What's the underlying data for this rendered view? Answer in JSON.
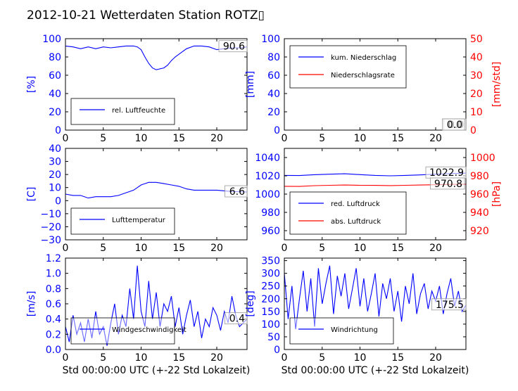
{
  "page": {
    "title": "2012-10-21 Wetterdaten Station ROTZ",
    "title_glyph": "▯"
  },
  "chart_data": [
    {
      "id": "humidity",
      "type": "line",
      "x_ticks": [
        "0",
        "5",
        "10",
        "15",
        "20"
      ],
      "xlim": [
        0,
        24
      ],
      "ylabel": "[%]",
      "ylim": [
        0,
        100
      ],
      "y_ticks": [
        "0",
        "20",
        "40",
        "60",
        "80",
        "100"
      ],
      "y_color": "#0000ff",
      "legend_loc": "lower-left",
      "annotation": "90.6",
      "series": [
        {
          "name": "rel. Luftfeuchte",
          "color": "#0000ff",
          "x": [
            0,
            1,
            2,
            3,
            4,
            5,
            6,
            7,
            8,
            9,
            9.5,
            10,
            10.5,
            11,
            11.5,
            12,
            12.5,
            13,
            13.5,
            14,
            14.5,
            15,
            15.5,
            16,
            17,
            18,
            19,
            20,
            21,
            22,
            23,
            24
          ],
          "y": [
            92,
            91,
            89,
            91,
            89,
            91,
            90,
            91,
            92,
            92,
            91,
            88,
            80,
            73,
            68,
            66,
            67,
            68,
            71,
            76,
            80,
            83,
            86,
            89,
            92,
            92,
            91,
            88,
            89,
            90,
            90,
            91
          ]
        }
      ]
    },
    {
      "id": "precip",
      "type": "line",
      "x_ticks": [
        "0",
        "5",
        "10",
        "15",
        "20"
      ],
      "xlim": [
        0,
        24
      ],
      "ylabel": "[mm]",
      "ylim": [
        0,
        100
      ],
      "y_ticks": [
        "0",
        "20",
        "40",
        "60",
        "80",
        "100"
      ],
      "y_color": "#0000ff",
      "y2label": "[mm/std]",
      "y2lim": [
        0,
        50
      ],
      "y2_ticks": [
        "0",
        "10",
        "20",
        "30",
        "40",
        "50"
      ],
      "y2_color": "#ff0000",
      "legend_loc": "upper-left",
      "annotation": "0.0",
      "annotation2": "0.0",
      "series": [
        {
          "name": "kum. Niederschlag",
          "color": "#0000ff",
          "axis": "left",
          "x": [
            0,
            24
          ],
          "y": [
            0,
            0
          ]
        },
        {
          "name": "Niederschlagsrate",
          "color": "#ff0000",
          "axis": "right",
          "x": [
            0,
            24
          ],
          "y": [
            0,
            0
          ]
        }
      ]
    },
    {
      "id": "temperature",
      "type": "line",
      "x_ticks": [
        "0",
        "5",
        "10",
        "15",
        "20"
      ],
      "xlim": [
        0,
        24
      ],
      "ylabel": "[C]",
      "ylim": [
        -30,
        40
      ],
      "y_ticks": [
        "−30",
        "−20",
        "−10",
        "0",
        "10",
        "20",
        "30",
        "40"
      ],
      "y_color": "#0000ff",
      "legend_loc": "lower-left",
      "annotation": "6.6",
      "series": [
        {
          "name": "Lufttemperatur",
          "color": "#0000ff",
          "x": [
            0,
            1,
            2,
            3,
            4,
            5,
            6,
            7,
            8,
            9,
            10,
            10.5,
            11,
            12,
            13,
            14,
            15,
            16,
            17,
            18,
            19,
            20,
            21,
            22,
            23,
            24
          ],
          "y": [
            5,
            4,
            4,
            2,
            3,
            3,
            3,
            4,
            6,
            8,
            12,
            13,
            14,
            14,
            13,
            12,
            11,
            9,
            8,
            8,
            8,
            8,
            7.5,
            7,
            6.8,
            6.6
          ]
        }
      ]
    },
    {
      "id": "pressure",
      "type": "line",
      "x_ticks": [
        "0",
        "5",
        "10",
        "15",
        "20"
      ],
      "xlim": [
        0,
        24
      ],
      "ylabel": "",
      "ylim": [
        950,
        1050
      ],
      "y_ticks": [
        "960",
        "980",
        "1000",
        "1020",
        "1040"
      ],
      "y_color": "#0000ff",
      "y2label": "[hPa]",
      "y2lim": [
        910,
        1010
      ],
      "y2_ticks": [
        "920",
        "940",
        "960",
        "980",
        "1000"
      ],
      "y2_color": "#ff0000",
      "legend_loc": "lower-left",
      "annotation": "1022.9",
      "annotation2": "970.8",
      "series": [
        {
          "name": "red. Luftdruck",
          "color": "#0000ff",
          "axis": "left",
          "x": [
            0,
            2,
            4,
            6,
            8,
            10,
            12,
            14,
            16,
            18,
            20,
            22,
            24
          ],
          "y": [
            1020.5,
            1020.3,
            1021.2,
            1021.8,
            1022.2,
            1021.3,
            1020.5,
            1020,
            1020.5,
            1021,
            1021.8,
            1022.5,
            1022.9
          ]
        },
        {
          "name": "abs. Luftdruck",
          "color": "#ff0000",
          "axis": "right",
          "x": [
            0,
            2,
            4,
            6,
            8,
            10,
            12,
            14,
            16,
            18,
            20,
            22,
            24
          ],
          "y": [
            968.5,
            968.4,
            969.2,
            969.6,
            969.9,
            969.6,
            969.5,
            969.3,
            969.6,
            969.9,
            970.2,
            970.6,
            970.8
          ]
        }
      ]
    },
    {
      "id": "windspeed",
      "type": "line",
      "x_ticks": [
        "0",
        "5",
        "10",
        "15",
        "20"
      ],
      "xlabel": "Std 00:00:00 UTC (+-22 Std Lokalzeit)",
      "xlim": [
        0,
        24
      ],
      "ylabel": "[m/s]",
      "ylim": [
        0,
        1.2
      ],
      "y_ticks": [
        "0.0",
        "0.2",
        "0.4",
        "0.6",
        "0.8",
        "1.0",
        "1.2"
      ],
      "y_color": "#0000ff",
      "legend_loc": "lower-left",
      "annotation": "0.4",
      "series": [
        {
          "name": "Windgeschwindigkeit",
          "color": "#0000ff",
          "x": [
            0,
            0.5,
            1,
            1.5,
            2,
            2.5,
            3,
            3.5,
            4,
            4.5,
            5,
            5.5,
            6,
            6.5,
            7,
            7.5,
            8,
            8.5,
            9,
            9.5,
            10,
            10.5,
            11,
            11.5,
            12,
            12.5,
            13,
            13.5,
            14,
            14.5,
            15,
            15.5,
            16,
            16.5,
            17,
            17.5,
            18,
            18.5,
            19,
            19.5,
            20,
            20.5,
            21,
            21.5,
            22,
            22.5,
            23,
            23.5,
            24
          ],
          "y": [
            0.3,
            0.1,
            0.45,
            0.2,
            0.35,
            0.1,
            0.4,
            0.15,
            0.5,
            0.2,
            0.3,
            0.05,
            0.35,
            0.6,
            0.2,
            0.45,
            0.3,
            0.8,
            0.4,
            1.1,
            0.5,
            0.3,
            0.9,
            0.4,
            0.75,
            0.3,
            0.6,
            0.5,
            0.7,
            0.3,
            0.55,
            0.2,
            0.45,
            0.65,
            0.3,
            0.5,
            0.15,
            0.4,
            0.3,
            0.55,
            0.45,
            0.25,
            0.5,
            0.35,
            0.7,
            0.45,
            0.3,
            0.35,
            0.4
          ]
        }
      ]
    },
    {
      "id": "winddir",
      "type": "line",
      "x_ticks": [
        "0",
        "5",
        "10",
        "15",
        "20"
      ],
      "xlabel": "Std 00:00:00 UTC (+-22 Std Lokalzeit)",
      "xlim": [
        0,
        24
      ],
      "ylabel": "[deg]",
      "ylim": [
        0,
        360
      ],
      "y_ticks": [
        "0",
        "50",
        "100",
        "150",
        "200",
        "250",
        "300",
        "350"
      ],
      "y_color": "#0000ff",
      "legend_loc": "lower-left",
      "annotation": "175.5",
      "series": [
        {
          "name": "Windrichtung",
          "color": "#0000ff",
          "x": [
            0,
            0.5,
            1,
            1.5,
            2,
            2.5,
            3,
            3.5,
            4,
            4.5,
            5,
            5.5,
            6,
            6.5,
            7,
            7.5,
            8,
            8.5,
            9,
            9.5,
            10,
            10.5,
            11,
            11.5,
            12,
            12.5,
            13,
            13.5,
            14,
            14.5,
            15,
            15.5,
            16,
            16.5,
            17,
            17.5,
            18,
            18.5,
            19,
            19.5,
            20,
            20.5,
            21,
            21.5,
            22,
            22.5,
            23,
            23.5,
            24
          ],
          "y": [
            300,
            120,
            250,
            80,
            200,
            310,
            150,
            280,
            90,
            320,
            180,
            260,
            330,
            140,
            290,
            210,
            300,
            160,
            240,
            320,
            170,
            280,
            150,
            220,
            300,
            130,
            260,
            200,
            280,
            150,
            230,
            110,
            250,
            180,
            300,
            140,
            220,
            260,
            160,
            230,
            190,
            250,
            140,
            220,
            280,
            170,
            230,
            150,
            175
          ]
        }
      ]
    }
  ]
}
